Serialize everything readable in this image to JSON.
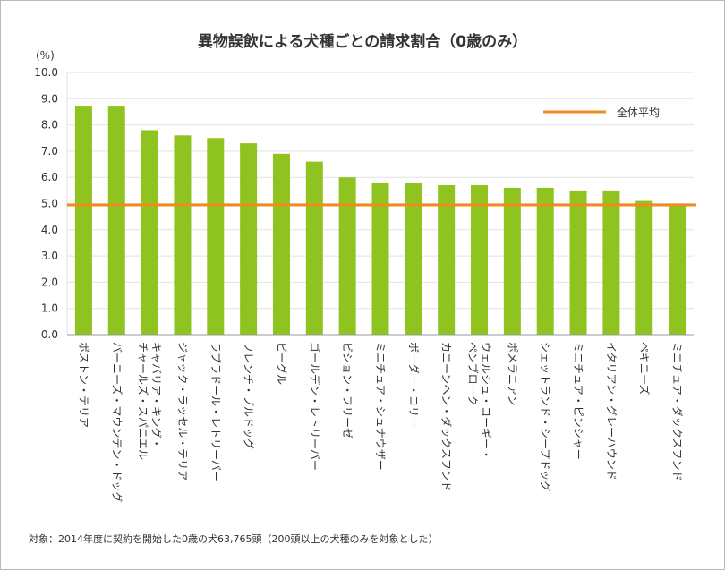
{
  "chart_data": {
    "type": "bar",
    "title": "異物誤飲による犬種ごとの請求割合（0歳のみ）",
    "yunit": "(%)",
    "ylim": [
      0,
      10
    ],
    "yticks": [
      "0.0",
      "1.0",
      "2.0",
      "3.0",
      "4.0",
      "5.0",
      "6.0",
      "7.0",
      "8.0",
      "9.0",
      "10.0"
    ],
    "categories": [
      "ボストン・テリア",
      "バーニーズ・マウンテン・ドッグ",
      "キャバリア・キング・\nチャールズ・スパニエル",
      "ジャック・ラッセル・テリア",
      "ラブラドール・レトリーバー",
      "フレンチ・ブルドッグ",
      "ビーグル",
      "ゴールデン・レトリーバー",
      "ビション・フリーゼ",
      "ミニチュア・シュナウザー",
      "ボーダー・コリー",
      "カニーンヘン・ダックスフンド",
      "ウェルシュ・コーギー・\nペンブローク",
      "ポメラニアン",
      "シェットランド・シープドッグ",
      "ミニチュア・ピンシャー",
      "イタリアン・グレーハウンド",
      "ペキニーズ",
      "ミニチュア・ダックスフンド"
    ],
    "values": [
      8.7,
      8.7,
      7.8,
      7.6,
      7.5,
      7.3,
      6.9,
      6.6,
      6.0,
      5.8,
      5.8,
      5.7,
      5.7,
      5.6,
      5.6,
      5.5,
      5.5,
      5.1,
      4.9
    ],
    "average": 4.95,
    "legend": {
      "label": "全体平均"
    },
    "colors": {
      "bar": "#8fc31f",
      "average": "#f08c1e",
      "grid": "#e2e2e2",
      "axis": "#9a9a9a"
    }
  },
  "footnote": "対象：2014年度に契約を開始した0歳の犬63,765頭（200頭以上の犬種のみを対象とした）"
}
